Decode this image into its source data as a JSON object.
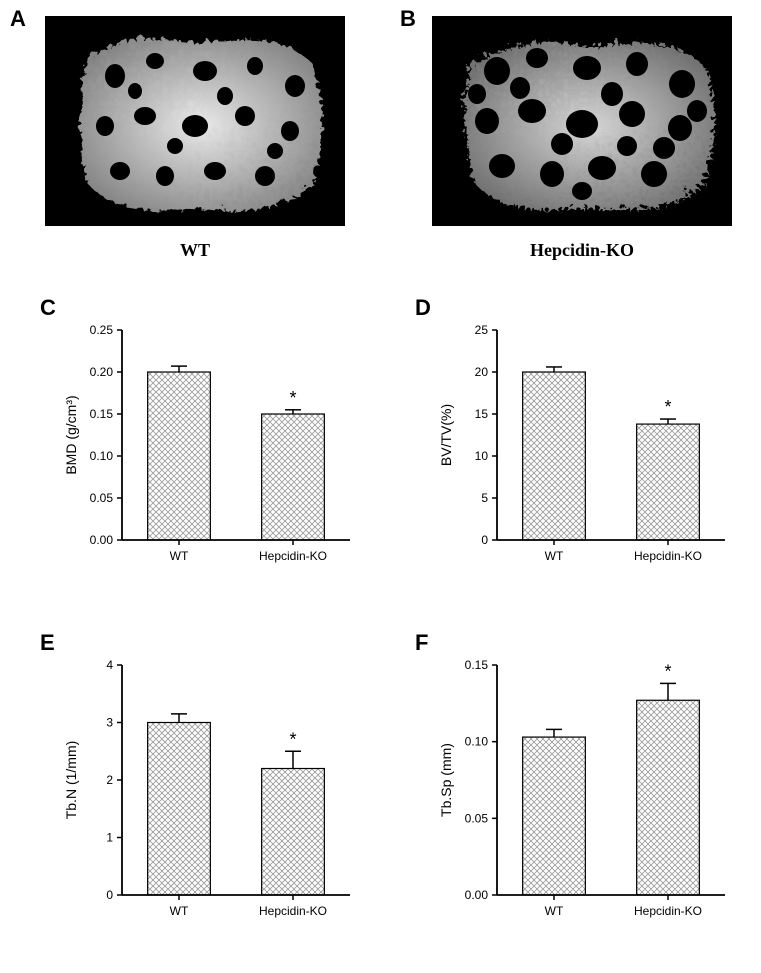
{
  "panel_labels": {
    "A": "A",
    "B": "B",
    "C": "C",
    "D": "D",
    "E": "E",
    "F": "F"
  },
  "images": {
    "A": {
      "caption": "WT"
    },
    "B": {
      "caption": "Hepcidin-KO"
    }
  },
  "charts": {
    "C": {
      "type": "bar",
      "ylabel": "BMD (g/cm³)",
      "ylim": [
        0,
        0.25
      ],
      "yticks": [
        0.0,
        0.05,
        0.1,
        0.15,
        0.2,
        0.25
      ],
      "ytick_labels": [
        "0.00",
        "0.05",
        "0.10",
        "0.15",
        "0.20",
        "0.25"
      ],
      "categories": [
        "WT",
        "Hepcidin-KO"
      ],
      "values": [
        0.2,
        0.15
      ],
      "errors": [
        0.007,
        0.005
      ],
      "sig": [
        false,
        true
      ],
      "bar_fill": "#ffffff",
      "bar_pattern": "crosshatch",
      "pattern_color": "#888888",
      "axis_color": "#000000",
      "label_fontsize": 14,
      "tick_fontsize": 12
    },
    "D": {
      "type": "bar",
      "ylabel": "BV/TV(%)",
      "ylim": [
        0,
        25
      ],
      "yticks": [
        0,
        5,
        10,
        15,
        20,
        25
      ],
      "ytick_labels": [
        "0",
        "5",
        "10",
        "15",
        "20",
        "25"
      ],
      "categories": [
        "WT",
        "Hepcidin-KO"
      ],
      "values": [
        20.0,
        13.8
      ],
      "errors": [
        0.6,
        0.6
      ],
      "sig": [
        false,
        true
      ],
      "bar_fill": "#ffffff",
      "bar_pattern": "crosshatch",
      "pattern_color": "#888888",
      "axis_color": "#000000",
      "label_fontsize": 14,
      "tick_fontsize": 12
    },
    "E": {
      "type": "bar",
      "ylabel": "Tb.N (1/mm)",
      "ylim": [
        0,
        4
      ],
      "yticks": [
        0,
        1,
        2,
        3,
        4
      ],
      "ytick_labels": [
        "0",
        "1",
        "2",
        "3",
        "4"
      ],
      "categories": [
        "WT",
        "Hepcidin-KO"
      ],
      "values": [
        3.0,
        2.2
      ],
      "errors": [
        0.15,
        0.3
      ],
      "sig": [
        false,
        true
      ],
      "bar_fill": "#ffffff",
      "bar_pattern": "crosshatch",
      "pattern_color": "#888888",
      "axis_color": "#000000",
      "label_fontsize": 14,
      "tick_fontsize": 12
    },
    "F": {
      "type": "bar",
      "ylabel": "Tb.Sp (mm)",
      "ylim": [
        0,
        0.15
      ],
      "yticks": [
        0.0,
        0.05,
        0.1,
        0.15
      ],
      "ytick_labels": [
        "0.00",
        "0.05",
        "0.10",
        "0.15"
      ],
      "categories": [
        "WT",
        "Hepcidin-KO"
      ],
      "values": [
        0.103,
        0.127
      ],
      "errors": [
        0.005,
        0.011
      ],
      "sig": [
        false,
        true
      ],
      "bar_fill": "#ffffff",
      "bar_pattern": "crosshatch",
      "pattern_color": "#888888",
      "axis_color": "#000000",
      "label_fontsize": 14,
      "tick_fontsize": 12
    }
  },
  "sig_marker": "*",
  "background_color": "#ffffff"
}
